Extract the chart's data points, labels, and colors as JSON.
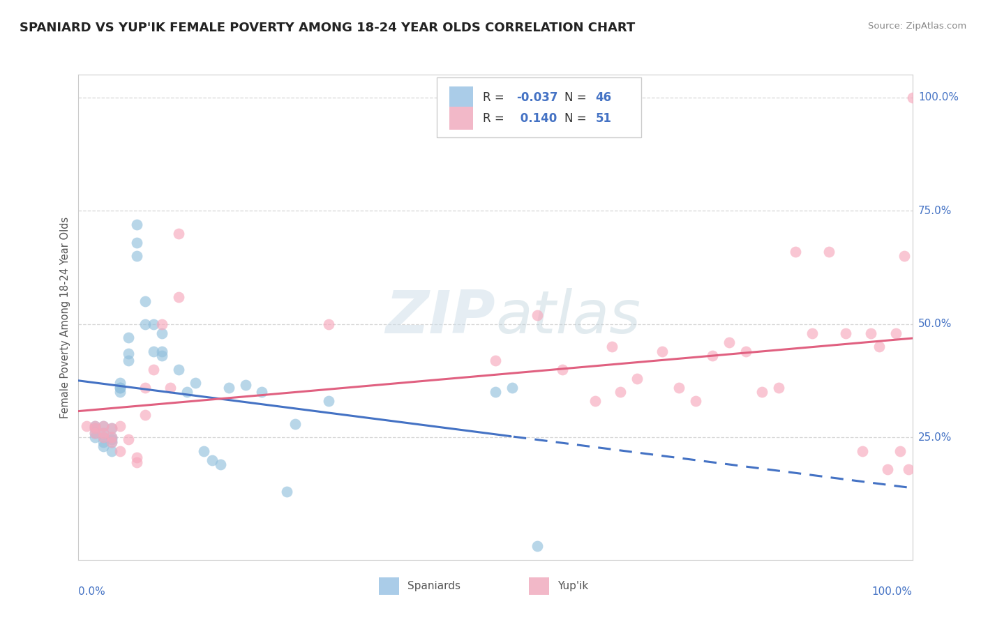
{
  "title": "SPANIARD VS YUP'IK FEMALE POVERTY AMONG 18-24 YEAR OLDS CORRELATION CHART",
  "source": "Source: ZipAtlas.com",
  "ylabel": "Female Poverty Among 18-24 Year Olds",
  "xlim": [
    0,
    1
  ],
  "ylim": [
    -0.02,
    1.05
  ],
  "ytick_labels": [
    "25.0%",
    "50.0%",
    "75.0%",
    "100.0%"
  ],
  "ytick_values": [
    0.25,
    0.5,
    0.75,
    1.0
  ],
  "color_blue": "#92c0dd",
  "color_pink": "#f7a8bc",
  "line_blue": "#4472c4",
  "line_pink": "#e06080",
  "background_color": "#ffffff",
  "title_fontsize": 13,
  "spaniards_x": [
    0.02,
    0.02,
    0.02,
    0.02,
    0.03,
    0.03,
    0.03,
    0.03,
    0.03,
    0.04,
    0.04,
    0.04,
    0.04,
    0.04,
    0.05,
    0.05,
    0.05,
    0.05,
    0.06,
    0.06,
    0.06,
    0.07,
    0.07,
    0.07,
    0.08,
    0.08,
    0.09,
    0.09,
    0.1,
    0.1,
    0.1,
    0.12,
    0.13,
    0.14,
    0.15,
    0.16,
    0.17,
    0.18,
    0.2,
    0.22,
    0.25,
    0.26,
    0.3,
    0.5,
    0.52,
    0.55
  ],
  "spaniards_y": [
    0.275,
    0.27,
    0.26,
    0.25,
    0.275,
    0.26,
    0.25,
    0.24,
    0.23,
    0.27,
    0.25,
    0.245,
    0.24,
    0.22,
    0.35,
    0.36,
    0.36,
    0.37,
    0.42,
    0.435,
    0.47,
    0.65,
    0.68,
    0.72,
    0.5,
    0.55,
    0.44,
    0.5,
    0.43,
    0.44,
    0.48,
    0.4,
    0.35,
    0.37,
    0.22,
    0.2,
    0.19,
    0.36,
    0.365,
    0.35,
    0.13,
    0.28,
    0.33,
    0.35,
    0.36,
    0.01
  ],
  "yupik_x": [
    0.01,
    0.02,
    0.02,
    0.02,
    0.03,
    0.03,
    0.03,
    0.04,
    0.04,
    0.04,
    0.05,
    0.05,
    0.06,
    0.07,
    0.07,
    0.08,
    0.08,
    0.09,
    0.1,
    0.11,
    0.12,
    0.12,
    0.3,
    0.5,
    0.55,
    0.58,
    0.62,
    0.64,
    0.65,
    0.67,
    0.7,
    0.72,
    0.74,
    0.76,
    0.78,
    0.8,
    0.82,
    0.84,
    0.86,
    0.88,
    0.9,
    0.92,
    0.94,
    0.95,
    0.96,
    0.97,
    0.98,
    0.985,
    0.99,
    0.995,
    1.0
  ],
  "yupik_y": [
    0.275,
    0.275,
    0.27,
    0.26,
    0.275,
    0.26,
    0.25,
    0.27,
    0.25,
    0.24,
    0.275,
    0.22,
    0.245,
    0.195,
    0.205,
    0.3,
    0.36,
    0.4,
    0.5,
    0.36,
    0.7,
    0.56,
    0.5,
    0.42,
    0.52,
    0.4,
    0.33,
    0.45,
    0.35,
    0.38,
    0.44,
    0.36,
    0.33,
    0.43,
    0.46,
    0.44,
    0.35,
    0.36,
    0.66,
    0.48,
    0.66,
    0.48,
    0.22,
    0.48,
    0.45,
    0.18,
    0.48,
    0.22,
    0.65,
    0.18,
    1.0
  ]
}
